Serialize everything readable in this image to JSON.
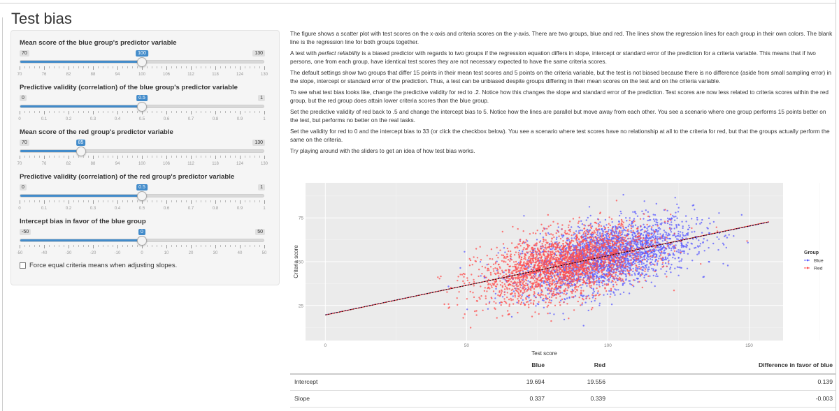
{
  "page_title": "Test bias",
  "sliders": [
    {
      "label": "Mean score of the blue group's predictor variable",
      "min": 70,
      "max": 130,
      "value": 100,
      "min_label": "70",
      "max_label": "130",
      "value_label": "100",
      "ticks": [
        "70",
        "76",
        "82",
        "88",
        "94",
        "100",
        "106",
        "112",
        "118",
        "124",
        "130"
      ]
    },
    {
      "label": "Predictive validity (correlation) of the blue group's predictor variable",
      "min": 0,
      "max": 1,
      "value": 0.5,
      "min_label": "0",
      "max_label": "1",
      "value_label": "0.5",
      "ticks": [
        "0",
        "0.1",
        "0.2",
        "0.3",
        "0.4",
        "0.5",
        "0.6",
        "0.7",
        "0.8",
        "0.9",
        "1"
      ]
    },
    {
      "label": "Mean score of the red group's predictor variable",
      "min": 70,
      "max": 130,
      "value": 85,
      "min_label": "70",
      "max_label": "130",
      "value_label": "85",
      "ticks": [
        "70",
        "76",
        "82",
        "88",
        "94",
        "100",
        "106",
        "112",
        "118",
        "124",
        "130"
      ]
    },
    {
      "label": "Predictive validity (correlation) of the red group's predictor variable",
      "min": 0,
      "max": 1,
      "value": 0.5,
      "min_label": "0",
      "max_label": "1",
      "value_label": "0.5",
      "ticks": [
        "0",
        "0.1",
        "0.2",
        "0.3",
        "0.4",
        "0.5",
        "0.6",
        "0.7",
        "0.8",
        "0.9",
        "1"
      ]
    },
    {
      "label": "Intercept bias in favor of the blue group",
      "min": -50,
      "max": 50,
      "value": 0,
      "min_label": "-50",
      "max_label": "50",
      "value_label": "0",
      "ticks": [
        "-50",
        "-40",
        "-30",
        "-20",
        "-10",
        "0",
        "10",
        "20",
        "30",
        "40",
        "50"
      ]
    }
  ],
  "checkbox": {
    "label": "Force equal criteria means when adjusting slopes.",
    "checked": false
  },
  "paragraphs": [
    {
      "parts": [
        {
          "t": "The figure shows a scatter plot with test scores on the x-axis and criteria scores on the y-axis. There are two groups, blue and red. The lines show the regression lines for each group in their own colors. The blank line is the regression line for both groups together."
        }
      ]
    },
    {
      "parts": [
        {
          "t": "A test with "
        },
        {
          "t": "perfect reliability",
          "i": true
        },
        {
          "t": " is a biased predictor with regards to two groups if the regression equation differs in slope, intercept or standard error of the prediction for a criteria variable. This means that if two persons, one from each group, have identical test scores they are not necessary expected to have the same criteria scores."
        }
      ]
    },
    {
      "parts": [
        {
          "t": "The default settings show two groups that differ 15 points in their mean test scores and 5 points on the criteria variable, but the test is not biased because there is no difference (aside from small sampling error) in the slope, intercept or standard error of the prediction. Thus, a test can be unbiased despite groups differing in their mean scores on the test and on the criteria variable."
        }
      ]
    },
    {
      "parts": [
        {
          "t": "To see what test bias looks like, change the predictive validity for red to .2. Notice how this changes the slope and standard error of the prediction. Test scores are now less related to criteria scores within the red group, but the red group does attain lower criteria scores than the blue group."
        }
      ]
    },
    {
      "parts": [
        {
          "t": "Set the predictive validity of red back to .5 and change the intercept bias to 5. Notice how the lines are parallel but move away from each other. You see a scenario where one group performs 15 points better on the test, but performs no better on the real tasks."
        }
      ]
    },
    {
      "parts": [
        {
          "t": "Set the validity for red to 0 and the intercept bias to 33 (or click the checkbox below). You see a scenario where test scores have no relationship at all to the criteria for red, but that the groups actually perform the same on the criteria."
        }
      ]
    },
    {
      "parts": [
        {
          "t": "Try playing around with the sliders to get an idea of how test bias works."
        }
      ]
    }
  ],
  "chart_data": {
    "type": "scatter",
    "xlabel": "Test score",
    "ylabel": "Criteria score",
    "xlim": [
      -7,
      162
    ],
    "ylim": [
      5,
      95
    ],
    "xticks": [
      0,
      50,
      100,
      150
    ],
    "yticks": [
      25,
      50,
      75
    ],
    "legend_title": "Group",
    "legend_position": "right",
    "grid": true,
    "series": [
      {
        "name": "Blue",
        "color": "#5b5bff",
        "mean_x": 100,
        "sd_x": 15,
        "mean_y": 53.4,
        "sd_y": 10,
        "n": 2500
      },
      {
        "name": "Red",
        "color": "#ff4d4d",
        "mean_x": 85,
        "sd_x": 15,
        "mean_y": 48.3,
        "sd_y": 10,
        "n": 2500
      }
    ],
    "lines": [
      {
        "group": "Blue",
        "color": "#3333ff",
        "intercept": 19.694,
        "slope": 0.337,
        "x": [
          0,
          157
        ]
      },
      {
        "group": "Red",
        "color": "#ff3333",
        "intercept": 19.556,
        "slope": 0.339,
        "x": [
          0,
          157
        ]
      },
      {
        "group": "All",
        "color": "#111111",
        "intercept": 19.6,
        "slope": 0.338,
        "x": [
          0,
          157
        ]
      }
    ]
  },
  "table": {
    "headers": [
      "",
      "Blue",
      "Red",
      "Difference in favor of blue"
    ],
    "rows": [
      [
        "Intercept",
        "19.694",
        "19.556",
        "0.139"
      ],
      [
        "Slope",
        "0.337",
        "0.339",
        "-0.003"
      ]
    ]
  }
}
